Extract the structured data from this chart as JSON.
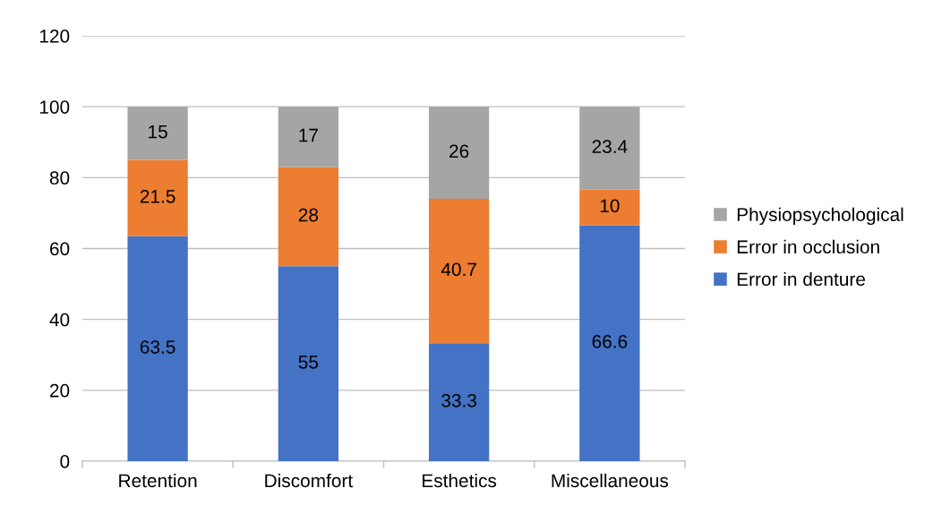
{
  "chart_data": {
    "type": "bar",
    "stacked": true,
    "categories": [
      "Retention",
      "Discomfort",
      "Esthetics",
      "Miscellaneous"
    ],
    "series": [
      {
        "name": "Error in denture",
        "color": "#4472c4",
        "values": [
          63.5,
          55,
          33.3,
          66.6
        ]
      },
      {
        "name": "Error in occlusion",
        "color": "#ed7d31",
        "values": [
          21.5,
          28,
          40.7,
          10
        ]
      },
      {
        "name": "Physiopsychological",
        "color": "#a5a5a5",
        "values": [
          15,
          17,
          26,
          23.4
        ]
      }
    ],
    "ylim": [
      0,
      120
    ],
    "yticks": [
      0,
      20,
      40,
      60,
      80,
      100,
      120
    ],
    "grid": "y",
    "legend": "right",
    "data_labels": true
  }
}
